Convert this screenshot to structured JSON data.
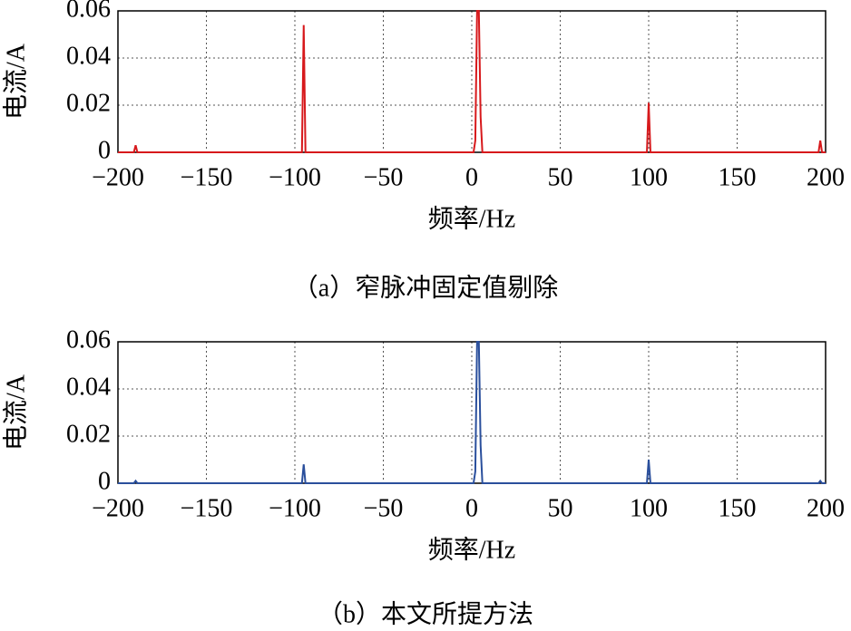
{
  "chart_data": [
    {
      "type": "line",
      "caption": "（a）窄脉冲固定值剔除",
      "xlabel": "频率/Hz",
      "ylabel": "电流/A",
      "color": "#d7191c",
      "x": [
        -200,
        -191,
        -190,
        -189,
        -96,
        -95,
        -94,
        1,
        2,
        3,
        4,
        5,
        6,
        99,
        100,
        101,
        196,
        197,
        198,
        200
      ],
      "values": [
        0,
        0,
        0.003,
        0,
        0,
        0.054,
        0,
        0,
        0.005,
        0.06,
        0.06,
        0.015,
        0,
        0,
        0.021,
        0,
        0,
        0.005,
        0,
        0
      ],
      "xlim": [
        -200,
        200
      ],
      "ylim": [
        0,
        0.06
      ],
      "xticks": [
        {
          "value": -200,
          "label": "−200"
        },
        {
          "value": -150,
          "label": "−150"
        },
        {
          "value": -100,
          "label": "−100"
        },
        {
          "value": -50,
          "label": "−50"
        },
        0,
        50,
        100,
        150,
        200
      ],
      "yticks": [
        0,
        0.02,
        0.04,
        0.06
      ],
      "grid": true
    },
    {
      "type": "line",
      "caption": "（b）本文所提方法",
      "xlabel": "频率/Hz",
      "ylabel": "电流/A",
      "color": "#2a4f9c",
      "x": [
        -200,
        -191,
        -190,
        -189,
        -96,
        -95,
        -94,
        1,
        2,
        3,
        4,
        5,
        6,
        99,
        100,
        101,
        196,
        197,
        198,
        200
      ],
      "values": [
        0,
        0,
        0.001,
        0,
        0,
        0.008,
        0,
        0,
        0.005,
        0.06,
        0.06,
        0.016,
        0,
        0,
        0.01,
        0,
        0,
        0.001,
        0,
        0
      ],
      "xlim": [
        -200,
        200
      ],
      "ylim": [
        0,
        0.06
      ],
      "xticks": [
        {
          "value": -200,
          "label": "−200"
        },
        {
          "value": -150,
          "label": "−150"
        },
        {
          "value": -100,
          "label": "−100"
        },
        {
          "value": -50,
          "label": "−50"
        },
        0,
        50,
        100,
        150,
        200
      ],
      "yticks": [
        0,
        0.02,
        0.04,
        0.06
      ],
      "grid": true
    }
  ]
}
